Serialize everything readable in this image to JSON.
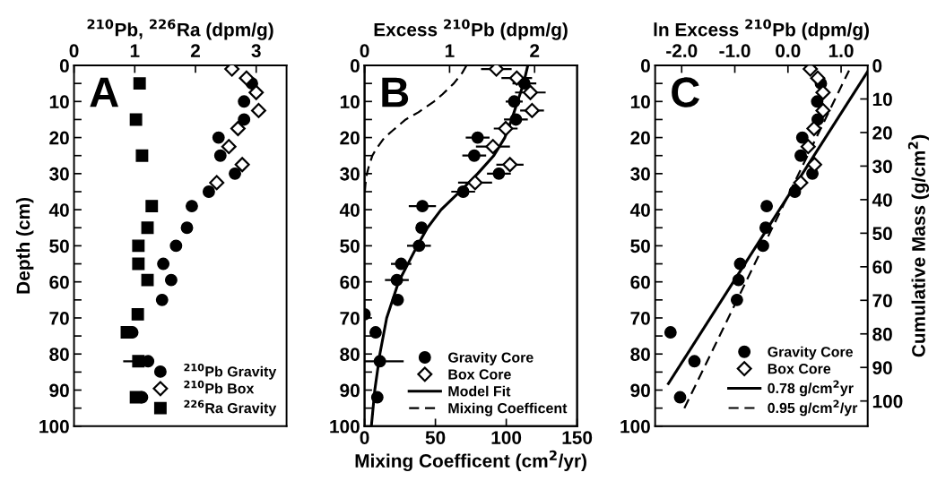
{
  "chart_data": [
    {
      "type": "scatter",
      "xlabel": "$^{210}$Pb, $^{226}$Ra (dpm/g)",
      "ylabel": "Depth (cm)",
      "annotations": [
        "A"
      ],
      "xlim": [
        0,
        3.5
      ],
      "xticks": [
        0,
        1,
        2,
        3
      ],
      "ylim": [
        100,
        0
      ],
      "yticks": [
        0,
        {
          "value": 5,
          "label": null
        },
        10,
        {
          "value": 15,
          "label": null
        },
        20,
        {
          "value": 25,
          "label": null
        },
        30,
        {
          "value": 35,
          "label": null
        },
        40,
        {
          "value": 45,
          "label": null
        },
        50,
        {
          "value": 55,
          "label": null
        },
        60,
        {
          "value": 65,
          "label": null
        },
        70,
        {
          "value": 75,
          "label": null
        },
        80,
        {
          "value": 85,
          "label": null
        },
        90,
        {
          "value": 95,
          "label": null
        },
        100
      ],
      "grid": false,
      "legend": "bottom right",
      "series": [
        {
          "name": "$^{210}$Pb Gravity",
          "marker": "circle",
          "color": "#000000",
          "x": [
            2.93,
            2.8,
            2.8,
            2.38,
            2.41,
            2.65,
            2.22,
            1.94,
            1.86,
            1.68,
            1.47,
            1.6,
            1.45,
            0.96,
            1.22,
            1.12
          ],
          "values": [
            5,
            10,
            15,
            20,
            25,
            30,
            35,
            39,
            45,
            50,
            55,
            59.5,
            65,
            74,
            82,
            92
          ]
        },
        {
          "name": "$^{210}$Pb Box",
          "marker": "diamond",
          "color": "#000000",
          "x": [
            2.6,
            2.84,
            3.0,
            3.04,
            2.7,
            2.55,
            2.77,
            2.35
          ],
          "values": [
            1,
            3.5,
            7.5,
            12.5,
            17.5,
            22.5,
            27.5,
            32.5
          ],
          "xerrors": [
            0.1,
            0.1,
            0.1,
            0.08,
            0.08,
            0.1,
            0.08,
            0.1
          ]
        },
        {
          "name": "$^{226}$Ra Gravity",
          "marker": "square",
          "color": "#000000",
          "x": [
            1.08,
            1.02,
            1.12,
            1.28,
            1.21,
            1.06,
            1.06,
            1.21,
            1.05,
            0.87,
            1.06,
            1.02
          ],
          "values": [
            5,
            15,
            25,
            39,
            45,
            50,
            55,
            59.5,
            69,
            74,
            82,
            92
          ],
          "xerrors": [
            0.05,
            0.05,
            0.05,
            0.05,
            0.05,
            0.05,
            0.05,
            0.05,
            0.05,
            0.05,
            [
              0.81,
              1.06
            ],
            0.08
          ]
        }
      ]
    },
    {
      "type": "scatter",
      "x2label": "Excess $^{210}$Pb (dpm/g)",
      "xlabel": "Mixing Coefficent (cm$^{2}$/yr)",
      "annotations": [
        "B"
      ],
      "x2lim": [
        0,
        2.5
      ],
      "x2ticks": [
        0,
        1,
        2
      ],
      "xlim": [
        0,
        150
      ],
      "xticks": [
        0,
        50,
        100,
        150
      ],
      "ylim": [
        100,
        0
      ],
      "yticks": [
        0,
        {
          "value": 5,
          "label": null
        },
        10,
        {
          "value": 15,
          "label": null
        },
        20,
        {
          "value": 25,
          "label": null
        },
        30,
        {
          "value": 35,
          "label": null
        },
        40,
        {
          "value": 45,
          "label": null
        },
        50,
        {
          "value": 55,
          "label": null
        },
        60,
        {
          "value": 65,
          "label": null
        },
        70,
        {
          "value": 75,
          "label": null
        },
        80,
        {
          "value": 85,
          "label": null
        },
        90,
        {
          "value": 95,
          "label": null
        },
        100
      ],
      "grid": false,
      "legend": "bottom right",
      "series": [
        {
          "name": "Gravity Core",
          "axis": "x2",
          "marker": "circle",
          "color": "#000000",
          "x": [
            1.88,
            1.76,
            1.78,
            1.33,
            1.29,
            1.58,
            1.16,
            0.68,
            0.67,
            0.64,
            0.43,
            0.38,
            0.39,
            0.0,
            0.13,
            0.18,
            0.15
          ],
          "values": [
            5,
            10,
            15,
            20,
            25,
            30,
            35,
            39,
            45,
            50,
            55,
            59.5,
            65,
            69,
            74,
            82,
            92
          ],
          "xerrors": [
            0.14,
            0.1,
            0.14,
            0.14,
            0.14,
            0.14,
            0.14,
            0.16,
            0.06,
            0.14,
            0.12,
            0.14,
            0.04,
            null,
            0.05,
            [
              0.0,
              0.46
            ],
            0.04
          ]
        },
        {
          "name": "Box Core",
          "axis": "x2",
          "marker": "diamond",
          "color": "#000000",
          "x": [
            1.55,
            1.79,
            1.95,
            1.97,
            1.66,
            1.51,
            1.71,
            1.3
          ],
          "values": [
            1,
            3.5,
            7.5,
            12.5,
            17.5,
            22.5,
            27.5,
            32.5
          ],
          "xerrors": [
            0.18,
            0.18,
            0.18,
            0.14,
            0.14,
            0.2,
            0.16,
            0.2
          ]
        },
        {
          "name": "Model Fit",
          "type": "line",
          "axis": "x2",
          "line_style": "solid",
          "color": "#000000",
          "x": [
            1.92,
            1.87,
            1.8,
            1.73,
            1.65,
            1.52,
            1.33,
            1.12,
            0.9,
            0.74,
            0.62,
            0.4,
            0.26,
            0.18,
            0.12,
            0.08
          ],
          "values": [
            0,
            5,
            10,
            15,
            20,
            25,
            30,
            35,
            40,
            45,
            50,
            60,
            70,
            80,
            90,
            100
          ]
        },
        {
          "name": "Mixing Coefficent",
          "type": "line",
          "line_style": "dashed",
          "color": "#000000",
          "x": [
            72,
            69,
            63,
            55,
            49,
            38,
            29,
            20,
            14,
            8.5,
            5.5,
            3,
            1.7,
            0.6,
            0
          ],
          "values": [
            0,
            2,
            5,
            8,
            10,
            13,
            15,
            18,
            20,
            23,
            25,
            28,
            30,
            33,
            36
          ]
        }
      ]
    },
    {
      "type": "scatter",
      "xlabel": "ln Excess $^{210}$Pb (dpm/g)",
      "y2label": "Cumulative Mass (g/cm$^{2}$)",
      "annotations": [
        "C"
      ],
      "xlim": [
        -2.5,
        1.5
      ],
      "xticks": [
        {
          "value": -2,
          "label": "-2.0"
        },
        {
          "value": -1,
          "label": "-1.0"
        },
        {
          "value": 0,
          "label": "0.0"
        },
        {
          "value": 1,
          "label": "1.0"
        }
      ],
      "ylim": [
        100,
        0
      ],
      "yticks": [
        0,
        {
          "value": 5,
          "label": null
        },
        10,
        {
          "value": 15,
          "label": null
        },
        20,
        {
          "value": 25,
          "label": null
        },
        30,
        {
          "value": 35,
          "label": null
        },
        40,
        {
          "value": 45,
          "label": null
        },
        50,
        {
          "value": 55,
          "label": null
        },
        60,
        {
          "value": 65,
          "label": null
        },
        70,
        {
          "value": 75,
          "label": null
        },
        80,
        {
          "value": 85,
          "label": null
        },
        90,
        {
          "value": 95,
          "label": null
        },
        100
      ],
      "y2lim": [
        107.5,
        0
      ],
      "y2ticks": [
        0,
        10,
        20,
        30,
        40,
        50,
        60,
        70,
        80,
        90,
        100
      ],
      "grid": false,
      "legend": "bottom right",
      "series": [
        {
          "name": "Gravity Core",
          "marker": "circle",
          "color": "#000000",
          "x": [
            0.62,
            0.55,
            0.56,
            0.27,
            0.24,
            0.46,
            0.13,
            -0.4,
            -0.42,
            -0.47,
            -0.9,
            -0.93,
            -0.96,
            -2.21,
            -1.76,
            -2.03
          ],
          "values": [
            5,
            10,
            15,
            20,
            25,
            30,
            35,
            39,
            45,
            50,
            55,
            59.5,
            65,
            74,
            82,
            92
          ]
        },
        {
          "name": "Box Core",
          "marker": "diamond",
          "color": "#000000",
          "x": [
            0.42,
            0.56,
            0.66,
            0.66,
            0.49,
            0.38,
            0.5,
            0.24
          ],
          "values": [
            1,
            3.5,
            7.5,
            12.5,
            17.5,
            22.5,
            27.5,
            32.5
          ]
        },
        {
          "name": "0.78 g/cm$^{2}$yr",
          "type": "line",
          "line_style": "solid",
          "color": "#000000",
          "x": [
            -2.25,
            1.5
          ],
          "values": [
            88.2,
            1.7
          ]
        },
        {
          "name": "0.95 g/cm$^{2}$/yr",
          "type": "line",
          "line_style": "dashed",
          "color": "#000000",
          "x": [
            -1.95,
            1.15
          ],
          "values": [
            95,
            1.4
          ]
        }
      ]
    }
  ]
}
